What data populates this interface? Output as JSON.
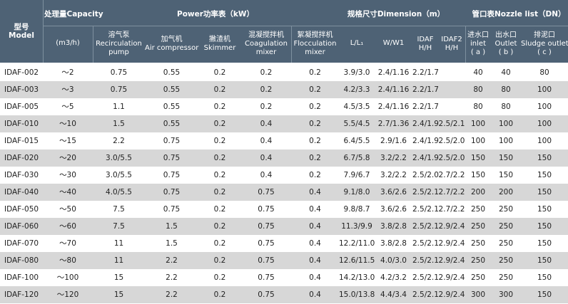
{
  "header": {
    "model": [
      "型号",
      "Model"
    ],
    "capacity_group": "处理量Capacity",
    "power_group": "Power功率表（kW）",
    "dimension_group": "规格尺寸Dimension（m）",
    "nozzle_group": "管口表Nozzle list（DN）",
    "columns": [
      [
        "(m3/h)"
      ],
      [
        "溶气泵",
        "Recirculation",
        "pump"
      ],
      [
        "加气机",
        "Air compressor"
      ],
      [
        "撇渣机",
        "Skimmer"
      ],
      [
        "混凝搅拌机",
        "Coagulation",
        "mixer"
      ],
      [
        "絮凝搅拌机",
        "Flocculation",
        "mixer"
      ],
      [
        "L/L₁"
      ],
      [
        "W/W1"
      ],
      [
        "IDAF",
        "H/H"
      ],
      [
        "IDAF2",
        "H/H"
      ],
      [
        "进水口",
        "inlet",
        "( a )"
      ],
      [
        "出水口",
        "Outlet",
        "( b )"
      ],
      [
        "排泥口",
        "Sludge outlet",
        "( c )"
      ]
    ]
  },
  "rows": [
    [
      "IDAF-002",
      "～2",
      "0.75",
      "0.55",
      "0.2",
      "0.2",
      "0.2",
      "3.9/3.0",
      "2.4/1.16",
      "2.2/1.7",
      "",
      "40",
      "40",
      "80"
    ],
    [
      "IDAF-003",
      "～3",
      "0.75",
      "0.55",
      "0.2",
      "0.2",
      "0.2",
      "4.2/3.3",
      "2.4/1.16",
      "2.2/1.7",
      "",
      "80",
      "80",
      "100"
    ],
    [
      "IDAF-005",
      "～5",
      "1.1",
      "0.55",
      "0.2",
      "0.2",
      "0.2",
      "4.5/3.5",
      "2.4/1.16",
      "2.2/1.7",
      "",
      "80",
      "80",
      "100"
    ],
    [
      "IDAF-010",
      "～10",
      "1.5",
      "0.55",
      "0.2",
      "0.4",
      "0.2",
      "5.5/4.5",
      "2.7/1.36",
      "2.4/1.9",
      "2.5/2.1",
      "100",
      "100",
      "100"
    ],
    [
      "IDAF-015",
      "～15",
      "2.2",
      "0.75",
      "0.2",
      "0.4",
      "0.2",
      "6.4/5.5",
      "2.9/1.6",
      "2.4/1.9",
      "2.5/2.0",
      "100",
      "100",
      "100"
    ],
    [
      "IDAF-020",
      "～20",
      "3.0/5.5",
      "0.75",
      "0.2",
      "0.4",
      "0.2",
      "6.7/5.8",
      "3.2/2.2",
      "2.4/1.9",
      "2.5/2.0",
      "150",
      "150",
      "150"
    ],
    [
      "IDAF-030",
      "～30",
      "3.0/5.5",
      "0.75",
      "0.2",
      "0.4",
      "0.2",
      "7.9/6.7",
      "3.2/2.2",
      "2.5/2.0",
      "2.7/2.2",
      "150",
      "150",
      "150"
    ],
    [
      "IDAF-040",
      "～40",
      "4.0/5.5",
      "0.75",
      "0.2",
      "0.75",
      "0.4",
      "9.1/8.0",
      "3.6/2.6",
      "2.5/2.1",
      "2.7/2.2",
      "200",
      "200",
      "150"
    ],
    [
      "IDAF-050",
      "～50",
      "7.5",
      "0.75",
      "0.2",
      "0.75",
      "0.4",
      "9.8/8.7",
      "3.6/2.6",
      "2.5/2.1",
      "2.7/2.2",
      "250",
      "250",
      "150"
    ],
    [
      "IDAF-060",
      "～60",
      "7.5",
      "1.5",
      "0.2",
      "0.75",
      "0.4",
      "11.3/9.9",
      "3.8/2.8",
      "2.5/2.1",
      "2.9/2.4",
      "250",
      "250",
      "150"
    ],
    [
      "IDAF-070",
      "～70",
      "11",
      "1.5",
      "0.2",
      "0.75",
      "0.4",
      "12.2/11.0",
      "3.8/2.8",
      "2.5/2.1",
      "2.9/2.4",
      "250",
      "250",
      "150"
    ],
    [
      "IDAF-080",
      "～80",
      "11",
      "2.2",
      "0.2",
      "0.75",
      "0.4",
      "12.6/11.5",
      "4.0/3.0",
      "2.5/2.1",
      "2.9/2.4",
      "250",
      "250",
      "150"
    ],
    [
      "IDAF-100",
      "～100",
      "15",
      "2.2",
      "0.2",
      "0.75",
      "0.4",
      "14.2/13.0",
      "4.2/3.2",
      "2.5/2.1",
      "2.9/2.4",
      "250",
      "250",
      "150"
    ],
    [
      "IDAF-120",
      "～120",
      "15",
      "2.2",
      "0.2",
      "0.75",
      "0.4",
      "15.0/13.8",
      "4.4/3.4",
      "2.5/2.1",
      "2.9/2.4",
      "300",
      "300",
      "150"
    ]
  ]
}
